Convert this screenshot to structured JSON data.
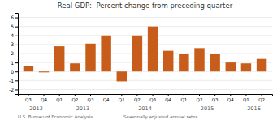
{
  "chart_data": {
    "type": "bar",
    "title": "Real GDP:  Percent change from preceding quarter",
    "categories": [
      "Q3",
      "Q4",
      "Q1",
      "Q2",
      "Q3",
      "Q4",
      "Q1",
      "Q2",
      "Q3",
      "Q4",
      "Q1",
      "Q2",
      "Q3",
      "Q4",
      "Q1",
      "Q2"
    ],
    "values": [
      0.6,
      -0.1,
      2.8,
      0.9,
      3.1,
      4.0,
      -1.1,
      4.0,
      5.0,
      2.3,
      2.0,
      2.6,
      2.0,
      1.0,
      0.9,
      1.4
    ],
    "color": "#C85C1A",
    "ylim": [
      -2.5,
      6.5
    ],
    "yticks": [
      -2,
      -1,
      0,
      1,
      2,
      3,
      4,
      5,
      6
    ],
    "grid": true,
    "annotations": [
      {
        "text": "2012",
        "start": 0,
        "end": 1
      },
      {
        "text": "2013",
        "start": 2,
        "end": 5
      },
      {
        "text": "2014",
        "start": 6,
        "end": 9
      },
      {
        "text": "2015",
        "start": 10,
        "end": 13
      },
      {
        "text": "2016",
        "start": 14,
        "end": 15
      },
      {
        "text": "U.S. Bureau of Economic Analysis"
      },
      {
        "text": "Seasonally adjusted annual rates"
      }
    ]
  }
}
